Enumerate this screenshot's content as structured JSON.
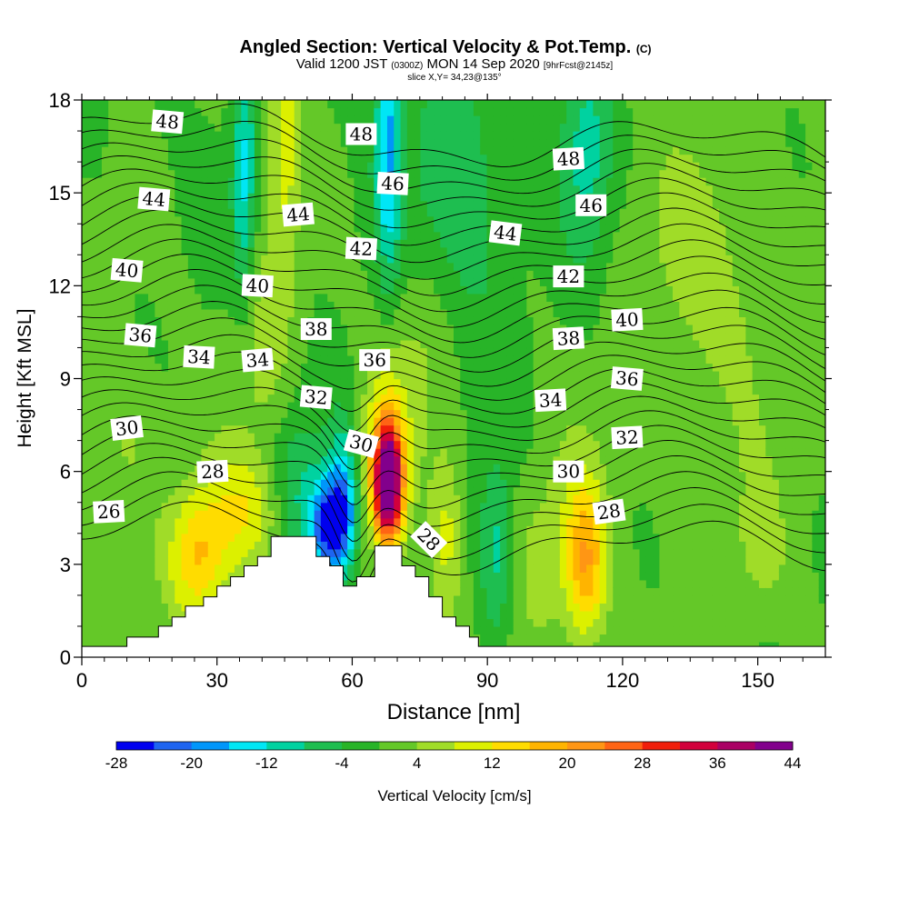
{
  "header": {
    "title_main": "Angled Section: Vertical Velocity & Pot.Temp.",
    "title_tag": "(C)",
    "line2_a": "Valid 1200 JST",
    "line2_b": "(0300Z)",
    "line2_c": "MON 14 Sep 2020",
    "line2_d": "[9hrFcst@2145z]",
    "line3": "slice X,Y= 34,23@135°"
  },
  "chart_data": {
    "type": "heatmap",
    "title": "Angled Section: Vertical Velocity & Pot.Temp.",
    "xlabel": "Distance [nm]",
    "ylabel": "Height [Kft MSL]",
    "xlim": [
      0,
      165
    ],
    "ylim": [
      0,
      18
    ],
    "x_ticks": [
      0,
      30,
      60,
      90,
      120,
      150
    ],
    "y_ticks": [
      0,
      3,
      6,
      9,
      12,
      15,
      18
    ],
    "colorbar": {
      "label": "Vertical Velocity [cm/s]",
      "tick_labels": [
        -28,
        -20,
        -12,
        -4,
        4,
        12,
        20,
        28,
        36,
        44
      ],
      "min": -28,
      "max": 44,
      "step": 4,
      "colors": [
        "#0000ee",
        "#1e64f0",
        "#0096fa",
        "#00e6f5",
        "#00d2a0",
        "#1ebe50",
        "#28b428",
        "#64c828",
        "#a0dc28",
        "#dcf000",
        "#ffdc00",
        "#ffb400",
        "#ff9614",
        "#ff6414",
        "#f01e0a",
        "#d2003c",
        "#aa0064",
        "#82008c"
      ]
    },
    "terrain": [
      [
        0,
        0.35
      ],
      [
        10,
        0.35
      ],
      [
        10,
        0.65
      ],
      [
        17,
        0.65
      ],
      [
        17,
        1.0
      ],
      [
        20,
        1.0
      ],
      [
        20,
        1.3
      ],
      [
        23,
        1.3
      ],
      [
        23,
        1.65
      ],
      [
        27,
        1.65
      ],
      [
        27,
        1.95
      ],
      [
        30,
        1.95
      ],
      [
        30,
        2.3
      ],
      [
        33,
        2.3
      ],
      [
        33,
        2.6
      ],
      [
        36,
        2.6
      ],
      [
        36,
        2.95
      ],
      [
        39,
        2.95
      ],
      [
        39,
        3.25
      ],
      [
        42,
        3.25
      ],
      [
        42,
        3.9
      ],
      [
        52,
        3.9
      ],
      [
        52,
        3.25
      ],
      [
        55,
        3.25
      ],
      [
        55,
        2.95
      ],
      [
        58,
        2.95
      ],
      [
        58,
        2.3
      ],
      [
        61,
        2.3
      ],
      [
        61,
        2.6
      ],
      [
        65,
        2.6
      ],
      [
        65,
        3.6
      ],
      [
        71,
        3.6
      ],
      [
        71,
        2.95
      ],
      [
        74,
        2.95
      ],
      [
        74,
        2.6
      ],
      [
        77,
        2.6
      ],
      [
        77,
        1.95
      ],
      [
        80,
        1.95
      ],
      [
        80,
        1.3
      ],
      [
        83,
        1.3
      ],
      [
        83,
        1.0
      ],
      [
        86,
        1.0
      ],
      [
        86,
        0.65
      ],
      [
        88,
        0.65
      ],
      [
        88,
        0.35
      ],
      [
        165,
        0.35
      ]
    ],
    "w_features": [
      {
        "x": 68,
        "z": 5.6,
        "sx": 2.2,
        "sz": 1.3,
        "w": 44
      },
      {
        "x": 67,
        "z": 6.5,
        "sx": 3.5,
        "sz": 2.0,
        "w": 12
      },
      {
        "x": 55,
        "z": 4.2,
        "sx": 3.0,
        "sz": 1.1,
        "w": -26
      },
      {
        "x": 58,
        "z": 5.2,
        "sx": 2.2,
        "sz": 1.6,
        "w": -14
      },
      {
        "x": 48,
        "z": 5.3,
        "sx": 4.5,
        "sz": 1.8,
        "w": -8
      },
      {
        "x": 26,
        "z": 3.2,
        "sx": 5.0,
        "sz": 1.6,
        "w": 16
      },
      {
        "x": 37,
        "z": 4.7,
        "sx": 6.0,
        "sz": 1.3,
        "w": 10
      },
      {
        "x": 112,
        "z": 3.0,
        "sx": 3.0,
        "sz": 1.8,
        "w": 16
      },
      {
        "x": 106,
        "z": 3.5,
        "sx": 7.0,
        "sz": 2.2,
        "w": 7
      },
      {
        "x": 81,
        "z": 4.0,
        "sx": 2.5,
        "sz": 2.0,
        "w": 9
      },
      {
        "x": 92,
        "z": 3.4,
        "sx": 2.5,
        "sz": 2.0,
        "w": -10
      },
      {
        "x": 45,
        "z": 17.0,
        "sx": 2.5,
        "sz": 3.0,
        "w": 10
      },
      {
        "x": 68,
        "z": 17.0,
        "sx": 2.0,
        "sz": 3.2,
        "w": -16
      },
      {
        "x": 36,
        "z": 15.5,
        "sx": 1.8,
        "sz": 3.0,
        "w": -13
      },
      {
        "x": 112,
        "z": 16.5,
        "sx": 4.0,
        "sz": 2.5,
        "w": -10
      },
      {
        "x": 84,
        "z": 15.0,
        "sx": 9.0,
        "sz": 3.5,
        "w": -7
      },
      {
        "x": 140,
        "z": 12.0,
        "sx": 15.0,
        "sz": 4.0,
        "w": 5
      },
      {
        "x": 150,
        "z": 3.0,
        "sx": 6.0,
        "sz": 2.0,
        "w": 5
      },
      {
        "x": 10,
        "z": 7.0,
        "sx": 6.0,
        "sz": 2.0,
        "w": 5
      },
      {
        "x": 40,
        "z": 10.0,
        "sx": 5.0,
        "sz": 2.5,
        "w": 6
      },
      {
        "x": 75,
        "z": 10.0,
        "sx": 5.0,
        "sz": 2.5,
        "w": 6
      }
    ],
    "theta_levels": {
      "min": 26,
      "max": 52,
      "step": 1
    },
    "theta_labels": [
      {
        "text": "48",
        "x": 19,
        "z": 17.3,
        "rot": 5
      },
      {
        "text": "48",
        "x": 62,
        "z": 16.9,
        "rot": 0
      },
      {
        "text": "48",
        "x": 108,
        "z": 16.1,
        "rot": -3
      },
      {
        "text": "46",
        "x": 69,
        "z": 15.3,
        "rot": 3
      },
      {
        "text": "46",
        "x": 113,
        "z": 14.6,
        "rot": 0
      },
      {
        "text": "44",
        "x": 16,
        "z": 14.8,
        "rot": 5
      },
      {
        "text": "44",
        "x": 48,
        "z": 14.3,
        "rot": -5
      },
      {
        "text": "44",
        "x": 94,
        "z": 13.7,
        "rot": 7
      },
      {
        "text": "42",
        "x": 62,
        "z": 13.2,
        "rot": 3
      },
      {
        "text": "42",
        "x": 108,
        "z": 12.3,
        "rot": 0
      },
      {
        "text": "40",
        "x": 10,
        "z": 12.5,
        "rot": 5
      },
      {
        "text": "40",
        "x": 39,
        "z": 12.0,
        "rot": 3
      },
      {
        "text": "40",
        "x": 121,
        "z": 10.9,
        "rot": -3
      },
      {
        "text": "38",
        "x": 52,
        "z": 10.6,
        "rot": 0
      },
      {
        "text": "38",
        "x": 108,
        "z": 10.3,
        "rot": -3
      },
      {
        "text": "36",
        "x": 13,
        "z": 10.4,
        "rot": 5
      },
      {
        "text": "36",
        "x": 65,
        "z": 9.6,
        "rot": 0
      },
      {
        "text": "36",
        "x": 121,
        "z": 9.0,
        "rot": 5
      },
      {
        "text": "34",
        "x": 26,
        "z": 9.7,
        "rot": 3
      },
      {
        "text": "34",
        "x": 39,
        "z": 9.6,
        "rot": -5
      },
      {
        "text": "34",
        "x": 104,
        "z": 8.3,
        "rot": -3
      },
      {
        "text": "32",
        "x": 52,
        "z": 8.4,
        "rot": 5
      },
      {
        "text": "32",
        "x": 121,
        "z": 7.1,
        "rot": -3
      },
      {
        "text": "30",
        "x": 10,
        "z": 7.4,
        "rot": -7
      },
      {
        "text": "30",
        "x": 62,
        "z": 6.9,
        "rot": 15
      },
      {
        "text": "30",
        "x": 108,
        "z": 6.0,
        "rot": 0
      },
      {
        "text": "28",
        "x": 29,
        "z": 6.0,
        "rot": -3
      },
      {
        "text": "28",
        "x": 77,
        "z": 3.8,
        "rot": 45
      },
      {
        "text": "28",
        "x": 117,
        "z": 4.7,
        "rot": -8
      },
      {
        "text": "26",
        "x": 6,
        "z": 4.7,
        "rot": -3
      }
    ]
  }
}
